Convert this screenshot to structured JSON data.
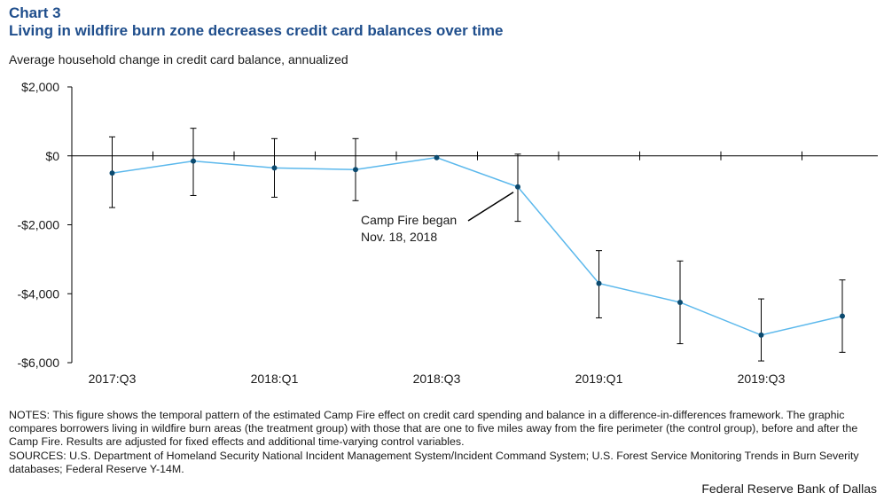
{
  "header": {
    "chart_number": "Chart 3",
    "title": "Living in wildfire burn zone decreases credit card balances over time",
    "subtitle": "Average household change in credit card balance, annualized"
  },
  "chart_data": {
    "type": "line",
    "title": "Living in wildfire burn zone decreases credit card balances over time",
    "ylabel": "Average household change in credit card balance, annualized",
    "xlabel": "",
    "ylim": [
      -6000,
      2000
    ],
    "yticks": [
      2000,
      0,
      -2000,
      -4000,
      -6000
    ],
    "ytick_labels": [
      "$2,000",
      "$0",
      "-$2,000",
      "-$4,000",
      "-$6,000"
    ],
    "x_periods": [
      "2017:Q3",
      "2017:Q4",
      "2018:Q1",
      "2018:Q2",
      "2018:Q3",
      "2018:Q4",
      "2019:Q1",
      "2019:Q2",
      "2019:Q3",
      "2019:Q4"
    ],
    "xtick_labels": [
      {
        "index": 0,
        "label": "2017:Q3"
      },
      {
        "index": 2,
        "label": "2018:Q1"
      },
      {
        "index": 4,
        "label": "2018:Q3"
      },
      {
        "index": 6,
        "label": "2019:Q1"
      },
      {
        "index": 8,
        "label": "2019:Q3"
      }
    ],
    "series": [
      {
        "name": "Estimated Camp Fire effect",
        "color": "#5bb8ec",
        "marker_color": "#0b4a6f",
        "values": [
          -500,
          -150,
          -350,
          -400,
          -50,
          -900,
          -3700,
          -4250,
          -5200,
          -4650
        ],
        "ci_low": [
          -1500,
          -1150,
          -1200,
          -1300,
          -50,
          -1900,
          -4700,
          -5450,
          -5950,
          -5700
        ],
        "ci_high": [
          550,
          800,
          500,
          500,
          -50,
          50,
          -2750,
          -3050,
          -4150,
          -3600
        ]
      }
    ],
    "annotations": [
      {
        "index": 5,
        "line1": "Camp Fire began",
        "line2": "Nov. 18, 2018"
      }
    ],
    "grid": false
  },
  "footer": {
    "notes": "NOTES: This figure shows the temporal pattern of the estimated Camp Fire effect on credit card spending and balance in a difference-in-differences framework. The graphic compares borrowers living in wildfire burn areas (the treatment group) with those that are one to five miles away from the fire perimeter (the control group), before and after the Camp Fire. Results are adjusted for fixed effects and additional time-varying control variables.",
    "sources": "SOURCES: U.S. Department of Homeland Security National Incident Management System/Incident Command System; U.S. Forest Service Monitoring Trends in Burn Severity databases; Federal Reserve Y-14M.",
    "credit": "Federal Reserve Bank of Dallas"
  }
}
